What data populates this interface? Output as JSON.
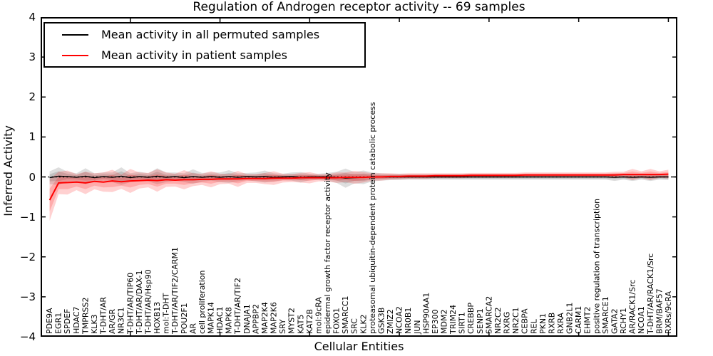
{
  "figure": {
    "title": "Regulation of Androgen receptor activity -- 69 samples",
    "xlabel": "Cellular Entities",
    "ylabel": "Inferred Activity"
  },
  "legend": {
    "items": [
      {
        "label": "Mean activity in all permuted samples",
        "color": "#000000"
      },
      {
        "label": "Mean activity in patient samples",
        "color": "#ff0000"
      }
    ]
  },
  "chart_data": {
    "type": "line",
    "title": "Regulation of Androgen receptor activity -- 69 samples",
    "xlabel": "Cellular Entities",
    "ylabel": "Inferred Activity",
    "ylim": [
      -4,
      4
    ],
    "yticks": [
      4,
      3,
      2,
      1,
      0,
      -1,
      -2,
      -3,
      -4
    ],
    "xtick_interval": 10,
    "grid": false,
    "legend_position": "upper left",
    "zero_line": {
      "y": 0,
      "style": "dotted",
      "color": "#000000"
    },
    "categories": [
      "PDE9A",
      "EGR1",
      "SPDEF",
      "HDAC7",
      "TMPRSS2",
      "KLK3",
      "T-DHT/AR",
      "AR/GR",
      "NR3C1",
      "T-DHT/AR/TIP60",
      "T-DHT/AR/DAX-1",
      "T-DHT/AR/Hsp90",
      "HOXB13",
      "mol:T-DHT",
      "T-DHT/AR/TIF2/CARM1",
      "POU2F1",
      "AR",
      "cell proliferation",
      "MAPK14",
      "HDAC1",
      "MAPK8",
      "T-DHT/AR/TIF2",
      "DNAJA1",
      "APPBP2",
      "MAP2K4",
      "MAP2K6",
      "SRY",
      "MYST2",
      "KAT5",
      "KAT2B",
      "mol:9cRA",
      "epidermal growth factor receptor activity",
      "FOXO1",
      "SMARCC1",
      "SRC",
      "KLK2",
      "proteasomal ubiquitin-dependent protein catabolic process",
      "GSK3B",
      "ZMIZ2",
      "NCOA2",
      "NR0B1",
      "JUN",
      "HSP90AA1",
      "EP300",
      "MDM2",
      "TRIM24",
      "SIRT1",
      "CREBBP",
      "SENP1",
      "SMARCA2",
      "NR2C2",
      "RXRG",
      "NR2C1",
      "CEBPA",
      "REL",
      "PKN1",
      "RXRB",
      "RXRA",
      "GNB2L1",
      "CARM1",
      "EHMT2",
      "positive regulation of transcription",
      "SMARCE1",
      "GATA2",
      "RCHY1",
      "AR/RACK1/Src",
      "NCOA1",
      "T-DHT/AR/RACK1/Src",
      "BRM/BAF57",
      "RXRs/9cRA"
    ],
    "series": [
      {
        "name": "Mean activity in all permuted samples",
        "color": "#000000",
        "line_width": 1.4,
        "band_color": "rgba(0,0,0,0.13)",
        "values": [
          -0.02,
          0.02,
          0.01,
          -0.01,
          0.02,
          -0.02,
          0.01,
          -0.01,
          0.02,
          -0.02,
          0.01,
          -0.01,
          0.02,
          -0.01,
          0.01,
          -0.02,
          0.01,
          -0.01,
          0.01,
          -0.01,
          0.01,
          -0.01,
          0.01,
          0.0,
          0.01,
          -0.01,
          0.0,
          0.01,
          -0.01,
          0.0,
          0.0,
          0.0,
          -0.01,
          -0.03,
          -0.02,
          -0.01,
          0.0,
          0.0,
          0.0,
          0.0,
          0.0,
          0.0,
          0.0,
          0.0,
          0.0,
          0.0,
          0.0,
          0.0,
          0.0,
          0.0,
          0.0,
          0.0,
          0.0,
          0.0,
          0.0,
          0.0,
          0.0,
          0.0,
          0.0,
          0.0,
          0.0,
          0.0,
          0.0,
          -0.01,
          0.0,
          -0.01,
          0.0,
          -0.01,
          0.0,
          0.0
        ],
        "band_halfwidth": [
          0.16,
          0.22,
          0.12,
          0.1,
          0.2,
          0.11,
          0.1,
          0.12,
          0.22,
          0.11,
          0.12,
          0.1,
          0.2,
          0.12,
          0.1,
          0.11,
          0.18,
          0.11,
          0.1,
          0.12,
          0.16,
          0.1,
          0.09,
          0.11,
          0.15,
          0.1,
          0.08,
          0.1,
          0.13,
          0.08,
          0.08,
          0.1,
          0.14,
          0.24,
          0.14,
          0.17,
          0.11,
          0.09,
          0.08,
          0.08,
          0.07,
          0.07,
          0.07,
          0.07,
          0.07,
          0.07,
          0.07,
          0.07,
          0.07,
          0.07,
          0.07,
          0.07,
          0.07,
          0.07,
          0.07,
          0.07,
          0.07,
          0.07,
          0.07,
          0.07,
          0.07,
          0.07,
          0.07,
          0.09,
          0.07,
          0.09,
          0.07,
          0.09,
          0.07,
          0.08
        ]
      },
      {
        "name": "Mean activity in patient samples",
        "color": "#ff0000",
        "line_width": 2,
        "band_color": "rgba(255,0,0,0.18)",
        "values": [
          -0.58,
          -0.15,
          -0.14,
          -0.13,
          -0.15,
          -0.11,
          -0.13,
          -0.1,
          -0.12,
          -0.1,
          -0.09,
          -0.08,
          -0.09,
          -0.07,
          -0.08,
          -0.07,
          -0.07,
          -0.06,
          -0.06,
          -0.05,
          -0.05,
          -0.05,
          -0.04,
          -0.04,
          -0.04,
          -0.03,
          -0.03,
          -0.03,
          -0.02,
          -0.02,
          -0.02,
          -0.02,
          -0.02,
          -0.01,
          -0.01,
          -0.01,
          0.0,
          0.0,
          0.01,
          0.01,
          0.02,
          0.02,
          0.02,
          0.03,
          0.03,
          0.03,
          0.03,
          0.04,
          0.04,
          0.04,
          0.04,
          0.04,
          0.04,
          0.05,
          0.05,
          0.05,
          0.05,
          0.05,
          0.05,
          0.05,
          0.05,
          0.05,
          0.05,
          0.05,
          0.06,
          0.06,
          0.06,
          0.06,
          0.06,
          0.07
        ],
        "band_halfwidth": [
          0.52,
          0.28,
          0.3,
          0.2,
          0.28,
          0.2,
          0.24,
          0.28,
          0.18,
          0.3,
          0.2,
          0.18,
          0.28,
          0.18,
          0.16,
          0.24,
          0.16,
          0.14,
          0.2,
          0.13,
          0.12,
          0.2,
          0.11,
          0.11,
          0.14,
          0.17,
          0.11,
          0.1,
          0.12,
          0.14,
          0.09,
          0.09,
          0.13,
          0.12,
          0.16,
          0.13,
          0.09,
          0.09,
          0.08,
          0.07,
          0.07,
          0.07,
          0.07,
          0.06,
          0.06,
          0.06,
          0.06,
          0.06,
          0.06,
          0.06,
          0.06,
          0.06,
          0.06,
          0.06,
          0.06,
          0.06,
          0.06,
          0.06,
          0.06,
          0.06,
          0.06,
          0.06,
          0.06,
          0.08,
          0.07,
          0.14,
          0.08,
          0.14,
          0.08,
          0.11
        ]
      }
    ]
  }
}
